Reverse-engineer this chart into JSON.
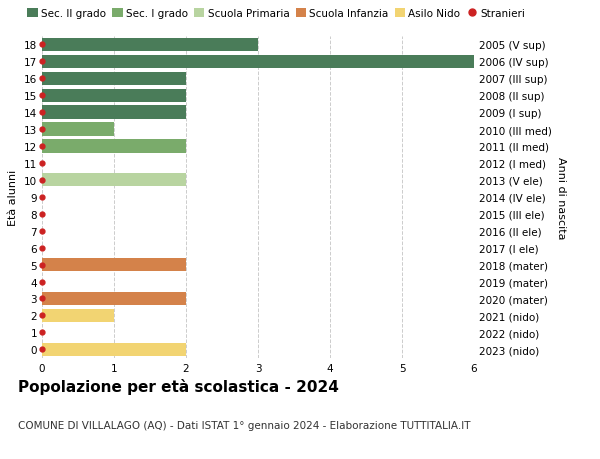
{
  "ages": [
    18,
    17,
    16,
    15,
    14,
    13,
    12,
    11,
    10,
    9,
    8,
    7,
    6,
    5,
    4,
    3,
    2,
    1,
    0
  ],
  "right_labels": [
    "2005 (V sup)",
    "2006 (IV sup)",
    "2007 (III sup)",
    "2008 (II sup)",
    "2009 (I sup)",
    "2010 (III med)",
    "2011 (II med)",
    "2012 (I med)",
    "2013 (V ele)",
    "2014 (IV ele)",
    "2015 (III ele)",
    "2016 (II ele)",
    "2017 (I ele)",
    "2018 (mater)",
    "2019 (mater)",
    "2020 (mater)",
    "2021 (nido)",
    "2022 (nido)",
    "2023 (nido)"
  ],
  "values": [
    3,
    6,
    2,
    2,
    2,
    1,
    2,
    0,
    2,
    0,
    0,
    0,
    0,
    2,
    0,
    2,
    1,
    0,
    2
  ],
  "colors": [
    "#4a7c59",
    "#4a7c59",
    "#4a7c59",
    "#4a7c59",
    "#4a7c59",
    "#7aab6b",
    "#7aab6b",
    "#7aab6b",
    "#b8d4a0",
    "#b8d4a0",
    "#b8d4a0",
    "#b8d4a0",
    "#b8d4a0",
    "#d4824a",
    "#d4824a",
    "#d4824a",
    "#f2d472",
    "#f2d472",
    "#f2d472"
  ],
  "legend_labels": [
    "Sec. II grado",
    "Sec. I grado",
    "Scuola Primaria",
    "Scuola Infanzia",
    "Asilo Nido",
    "Stranieri"
  ],
  "legend_colors": [
    "#4a7c59",
    "#7aab6b",
    "#b8d4a0",
    "#d4824a",
    "#f2d472",
    "#cc2222"
  ],
  "title": "Popolazione per età scolastica - 2024",
  "subtitle": "COMUNE DI VILLALAGO (AQ) - Dati ISTAT 1° gennaio 2024 - Elaborazione TUTTITALIA.IT",
  "ylabel_left": "Età alunni",
  "ylabel_right": "Anni di nascita",
  "xlim": [
    0,
    6
  ],
  "ylim": [
    -0.5,
    18.5
  ],
  "bg_color": "#ffffff",
  "grid_color": "#cccccc",
  "title_fontsize": 11,
  "subtitle_fontsize": 7.5,
  "tick_fontsize": 7.5,
  "label_fontsize": 8,
  "legend_fontsize": 7.5,
  "bar_height": 0.78
}
